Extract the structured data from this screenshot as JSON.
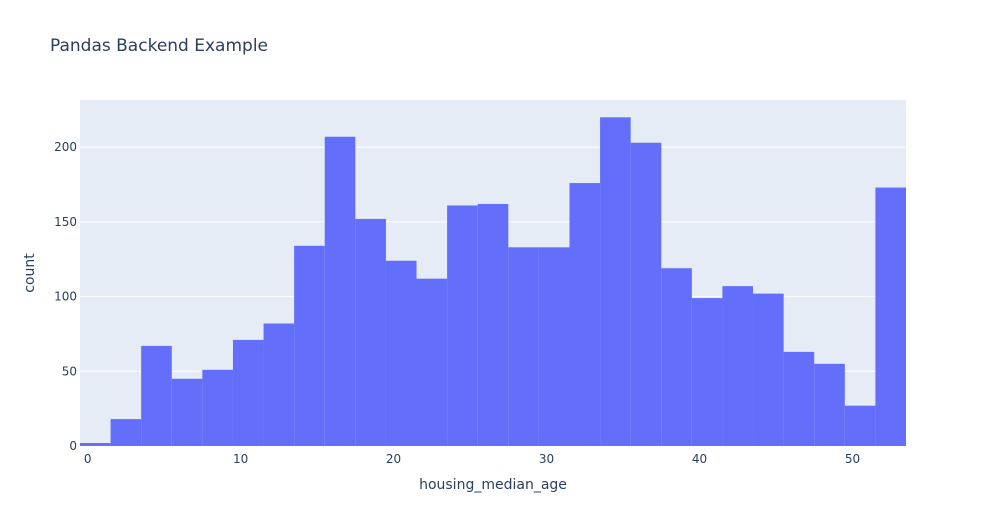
{
  "chart_data": {
    "type": "bar",
    "title": "Pandas Backend Example",
    "xlabel": "housing_median_age",
    "ylabel": "count",
    "bin_width": 2,
    "bin_start": -0.5,
    "values": [
      2,
      18,
      67,
      45,
      51,
      71,
      82,
      134,
      207,
      152,
      124,
      112,
      161,
      162,
      133,
      133,
      176,
      220,
      203,
      119,
      99,
      107,
      102,
      63,
      55,
      27,
      173
    ],
    "xlim": [
      -0.5,
      53.5
    ],
    "ylim": [
      0,
      231.6
    ],
    "x_ticks": [
      0,
      10,
      20,
      30,
      40,
      50
    ],
    "y_ticks": [
      0,
      50,
      100,
      150,
      200
    ],
    "grid": true,
    "colors": {
      "bar": "#636efa",
      "plot_bg": "#e5ecf6",
      "grid": "#ffffff",
      "text": "#2a3f5f"
    }
  }
}
